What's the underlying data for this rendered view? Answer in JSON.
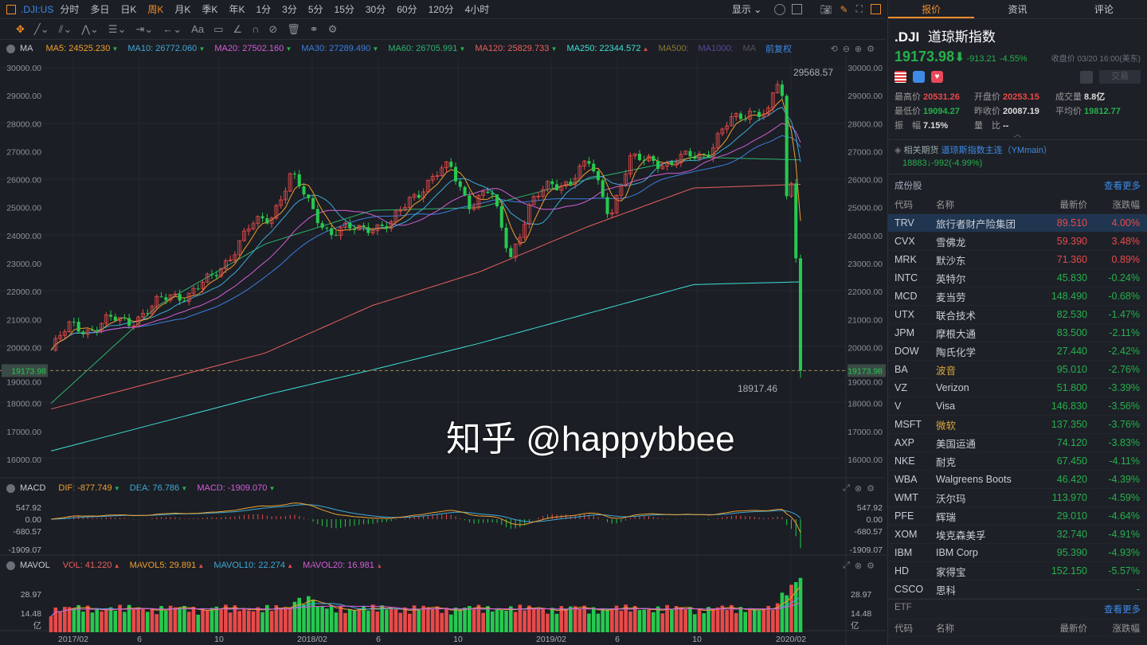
{
  "topbar": {
    "symbol": ".DJI:US",
    "periods": [
      "分时",
      "多日",
      "日K",
      "周K",
      "月K",
      "季K",
      "年K",
      "1分",
      "3分",
      "5分",
      "15分",
      "30分",
      "60分",
      "120分",
      "4小时"
    ],
    "active": "周K",
    "display": "显示"
  },
  "toolbar": {
    "font_label": "Aa"
  },
  "ma_legend": {
    "title": "MA",
    "items": [
      {
        "label": "MA5: 24525.230",
        "color": "#f0a030",
        "dir": "down"
      },
      {
        "label": "MA10: 26772.060",
        "color": "#3fa9d8",
        "dir": "down"
      },
      {
        "label": "MA20: 27502.160",
        "color": "#d45ed8",
        "dir": "down"
      },
      {
        "label": "MA30: 27289.490",
        "color": "#3c7fe0",
        "dir": "down"
      },
      {
        "label": "MA60: 26705.991",
        "color": "#2fb36f",
        "dir": "down"
      },
      {
        "label": "MA120: 25829.733",
        "color": "#e86060",
        "dir": "down"
      },
      {
        "label": "MA250: 22344.572",
        "color": "#3fe0d8",
        "dir": "up"
      },
      {
        "label": "MA500:",
        "color": "#8a7a3a",
        "dir": ""
      },
      {
        "label": "MA1000:",
        "color": "#5a4a9a",
        "dir": ""
      },
      {
        "label": "MA",
        "color": "#555",
        "dir": ""
      }
    ],
    "adjust": "前复权"
  },
  "macd_legend": {
    "title": "MACD",
    "items": [
      {
        "label": "DIF: -877.749",
        "color": "#f0a030",
        "dir": "down"
      },
      {
        "label": "DEA: 76.786",
        "color": "#3fa9d8",
        "dir": "down"
      },
      {
        "label": "MACD: -1909.070",
        "color": "#d45ed8",
        "dir": "down"
      }
    ]
  },
  "vol_legend": {
    "title": "MAVOL",
    "items": [
      {
        "label": "VOL: 41.220",
        "color": "#e86060",
        "dir": "up"
      },
      {
        "label": "MAVOL5: 29.891",
        "color": "#f0a030",
        "dir": "up"
      },
      {
        "label": "MAVOL10: 22.274",
        "color": "#3fa9d8",
        "dir": "up"
      },
      {
        "label": "MAVOL20: 16.981",
        "color": "#d45ed8",
        "dir": "up"
      }
    ]
  },
  "chart_data": [
    {
      "type": "candlestick",
      "title": "",
      "period": "weekly",
      "y_ticks": [
        "30000.00",
        "29000.00",
        "28000.00",
        "27000.00",
        "26000.00",
        "25000.00",
        "24000.00",
        "23000.00",
        "22000.00",
        "21000.00",
        "20000.00",
        "19000.00",
        "18000.00",
        "17000.00",
        "16000.00"
      ],
      "ylim": [
        16000,
        30000
      ],
      "x_ticks": [
        "2017/02",
        "6",
        "10",
        "2018/02",
        "6",
        "10",
        "2019/02",
        "6",
        "10",
        "2020/02"
      ],
      "monthly_close_from_2017_01": [
        19860,
        20812,
        20663,
        20940,
        21008,
        21349,
        21891,
        21948,
        22405,
        23377,
        24272,
        24719,
        26149,
        25029,
        24103,
        24163,
        24416,
        24271,
        25415,
        25965,
        26458,
        25116,
        25538,
        23327,
        24999,
        25916,
        25929,
        26593,
        24815,
        26600,
        26864,
        26403,
        26917,
        27046,
        28051,
        28538,
        28256
      ],
      "weekly_close_2020_02_to_03": [
        29102,
        29398,
        28992,
        25409,
        25865,
        23186,
        19174
      ],
      "ma60_readings": [
        18000,
        21500,
        23700,
        24900,
        25000,
        26000,
        26800,
        26706
      ],
      "ma120_readings": [
        17800,
        18800,
        19800,
        21500,
        22700,
        24300,
        25700,
        25830
      ],
      "ma250_readings": [
        16300,
        17300,
        18300,
        19200,
        20150,
        21200,
        22250,
        22345
      ],
      "high_label": "29568.57",
      "low_label": "18917.46",
      "last_price": "19173.98",
      "last": 19173.98
    },
    {
      "type": "macd",
      "y_ticks": [
        "547.92",
        "0.00",
        "-680.57",
        "-1909.07"
      ]
    },
    {
      "type": "volume",
      "unit": "亿",
      "y_ticks": [
        "28.97",
        "14.48"
      ],
      "recent_volume": [
        18,
        20,
        17,
        22,
        30,
        28,
        36,
        38,
        41.22
      ]
    }
  ],
  "quote": {
    "tabs": [
      "报价",
      "资讯",
      "评论"
    ],
    "code": ".DJI",
    "name": "道琼斯指数",
    "price": "19173.98",
    "change": "-913.21",
    "pct": "-4.55%",
    "close_time": "收盘价 03/20 16:00(美东)",
    "trade": "交易",
    "stats": [
      {
        "k": "最高价",
        "v": "20531.26",
        "c": "red"
      },
      {
        "k": "开盘价",
        "v": "20253.15",
        "c": "red"
      },
      {
        "k": "成交量",
        "v": "8.8亿",
        "c": "wht"
      },
      {
        "k": "最低价",
        "v": "19094.27",
        "c": "grn"
      },
      {
        "k": "昨收价",
        "v": "20087.19",
        "c": "wht"
      },
      {
        "k": "平均价",
        "v": "19812.77",
        "c": "grn"
      },
      {
        "k": "振　幅",
        "v": "7.15%",
        "c": "wht"
      },
      {
        "k": "量　比",
        "v": "--",
        "c": "wht"
      }
    ],
    "futures_label": "相关期货",
    "futures_name": "道琼斯指数主连（YMmain）",
    "futures_quote": "18883↓-992(-4.99%)"
  },
  "components": {
    "title": "成份股",
    "more": "查看更多",
    "headers": [
      "代码",
      "名称",
      "最新价",
      "涨跌幅"
    ],
    "rows": [
      [
        "TRV",
        "旅行者财产险集团",
        "89.510",
        "4.00%"
      ],
      [
        "CVX",
        "雪佛龙",
        "59.390",
        "3.48%"
      ],
      [
        "MRK",
        "默沙东",
        "71.360",
        "0.89%"
      ],
      [
        "INTC",
        "英特尔",
        "45.830",
        "-0.24%"
      ],
      [
        "MCD",
        "麦当劳",
        "148.490",
        "-0.68%"
      ],
      [
        "UTX",
        "联合技术",
        "82.530",
        "-1.47%"
      ],
      [
        "JPM",
        "摩根大通",
        "83.500",
        "-2.11%"
      ],
      [
        "DOW",
        "陶氏化学",
        "27.440",
        "-2.42%"
      ],
      [
        "BA",
        "波音",
        "95.010",
        "-2.76%"
      ],
      [
        "VZ",
        "Verizon",
        "51.800",
        "-3.39%"
      ],
      [
        "V",
        "Visa",
        "146.830",
        "-3.56%"
      ],
      [
        "MSFT",
        "微软",
        "137.350",
        "-3.76%"
      ],
      [
        "AXP",
        "美国运通",
        "74.120",
        "-3.83%"
      ],
      [
        "NKE",
        "耐克",
        "67.450",
        "-4.11%"
      ],
      [
        "WBA",
        "Walgreens Boots",
        "46.420",
        "-4.39%"
      ],
      [
        "WMT",
        "沃尔玛",
        "113.970",
        "-4.59%"
      ],
      [
        "PFE",
        "辉瑞",
        "29.010",
        "-4.64%"
      ],
      [
        "XOM",
        "埃克森美孚",
        "32.740",
        "-4.91%"
      ],
      [
        "IBM",
        "IBM Corp",
        "95.390",
        "-4.93%"
      ],
      [
        "HD",
        "家得宝",
        "152.150",
        "-5.57%"
      ],
      [
        "CSCO",
        "思科",
        "",
        "-"
      ]
    ]
  },
  "etf": {
    "title": "ETF",
    "more": "查看更多",
    "headers": [
      "代码",
      "名称",
      "最新价",
      "涨跌幅"
    ]
  },
  "watermark": "知乎 @happybbee"
}
